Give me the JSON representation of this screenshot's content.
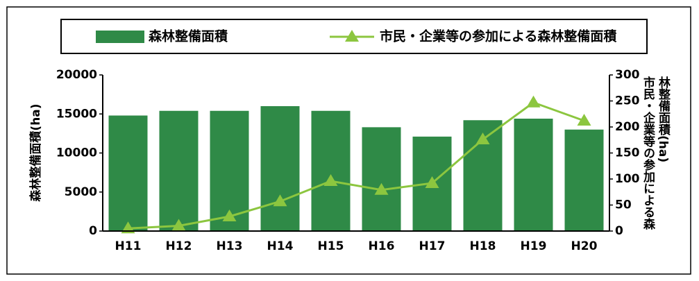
{
  "chart_data": {
    "type": "bar_line",
    "categories": [
      "H11",
      "H12",
      "H13",
      "H14",
      "H15",
      "H16",
      "H17",
      "H18",
      "H19",
      "H20"
    ],
    "series": [
      {
        "name": "森林整備面積",
        "type": "bar",
        "color": "#2f8a47",
        "values": [
          14800,
          15400,
          15400,
          16000,
          15400,
          13300,
          12100,
          14200,
          14400,
          13000
        ]
      },
      {
        "name": "市民・企業等の参加による森林整備面積",
        "type": "line",
        "axis": "y2",
        "color": "#8cc63f",
        "values": [
          5,
          10,
          28,
          57,
          96,
          79,
          92,
          176,
          247,
          212
        ]
      }
    ],
    "ylabel": "森林整備面積(ha)",
    "y2label": "市民・企業等の参加による森林整備面積(ha)",
    "ylim": [
      0,
      20000
    ],
    "yticks": [
      0,
      5000,
      10000,
      15000,
      20000
    ],
    "y2lim": [
      0,
      300
    ],
    "y2ticks": [
      0,
      50,
      100,
      150,
      200,
      250,
      300
    ],
    "legend": "top"
  }
}
